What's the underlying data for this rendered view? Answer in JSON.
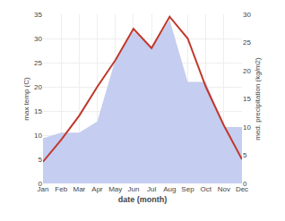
{
  "chart_data": {
    "type": "line",
    "categories": [
      "Jan",
      "Feb",
      "Mar",
      "Apr",
      "May",
      "Jun",
      "Jul",
      "Aug",
      "Sep",
      "Oct",
      "Nov",
      "Dec"
    ],
    "xlabel": "date (month)",
    "ylabel": "max temp (C)",
    "y2label": "med. precipitation (kg/m2)",
    "series": [
      {
        "type": "area",
        "axis": "y2",
        "color": "#c5cdf0",
        "values": [
          8.0,
          9.0,
          9.0,
          11.0,
          22.0,
          27.0,
          24.0,
          29.0,
          18.0,
          18.0,
          10.0,
          10.0
        ]
      },
      {
        "type": "line",
        "color": "#c0392b",
        "values": [
          4.5,
          9.0,
          14.0,
          20.0,
          25.5,
          32.0,
          28.0,
          34.5,
          30.0,
          20.0,
          12.0,
          5.0
        ]
      }
    ],
    "ylim": [
      0,
      35
    ],
    "yticks": [
      0,
      5,
      10,
      15,
      20,
      25,
      30,
      35
    ],
    "y2lim": [
      0,
      30
    ],
    "y2ticks": [
      0,
      5,
      10,
      15,
      20,
      25,
      30
    ],
    "grid": true
  }
}
